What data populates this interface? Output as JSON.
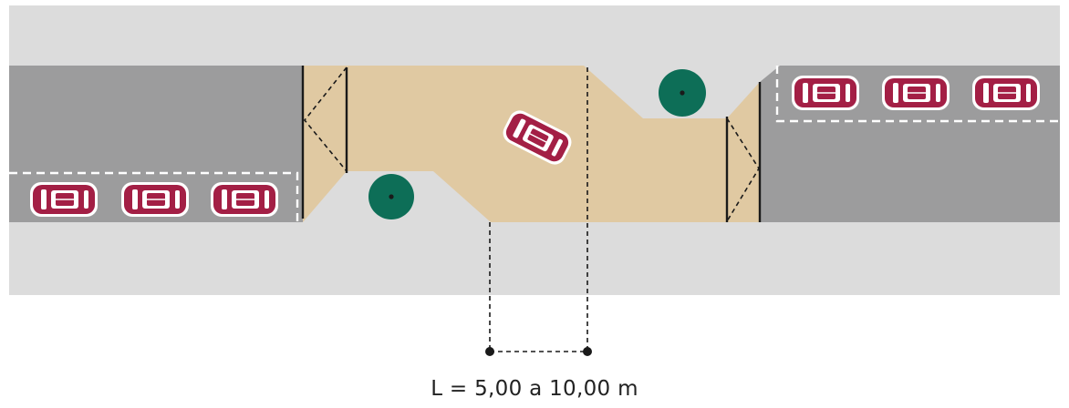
{
  "dimension_label": "L = 5,00 a 10,00 m",
  "colors": {
    "sidewalk": "#dcdcdc",
    "roadway": "#9c9c9d",
    "raised_platform": "#e0c9a2",
    "car_body": "#a31f45",
    "car_window": "#ffffff",
    "tree_canopy": "#0d6e57",
    "curb_line": "#1a1a1a",
    "parking_line": "#ffffff",
    "dimension_line": "#1a1a1a"
  },
  "icons": {
    "car": "car-icon",
    "tree": "tree-icon"
  }
}
